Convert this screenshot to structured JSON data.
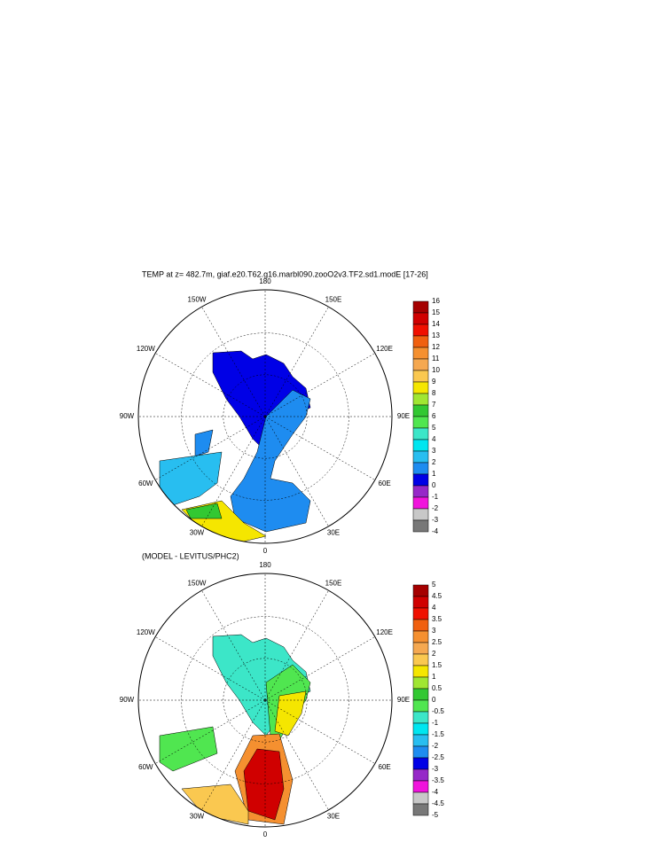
{
  "title": "TEMP at z= 482.7m, giaf.e20.T62.g16.marbl090.zooO2v3.TF2.sd1.modE [17-26]",
  "panels": [
    {
      "lon_labels": [
        "180",
        "150E",
        "120E",
        "90E",
        "60E",
        "30E",
        "0",
        "30W",
        "60W",
        "90W",
        "120W",
        "150W"
      ],
      "colorbar": {
        "labels": [
          "16",
          "15",
          "14",
          "13",
          "12",
          "11",
          "10",
          "9",
          "8",
          "7",
          "6",
          "5",
          "4",
          "3",
          "2",
          "1",
          "0",
          "-1",
          "-2",
          "-3",
          "-4"
        ],
        "colors": [
          "#a50000",
          "#d00000",
          "#f01000",
          "#f06010",
          "#f59030",
          "#f5a850",
          "#fac850",
          "#f5e600",
          "#a0e632",
          "#32c832",
          "#50e650",
          "#3ce6c8",
          "#00e6f0",
          "#28bef0",
          "#1e8cf0",
          "#0000e6",
          "#9628c8",
          "#f014dc",
          "#c8c8c8",
          "#787878"
        ]
      }
    },
    {
      "subtitle": "(MODEL - LEVITUS/PHC2)",
      "lon_labels": [
        "180",
        "150E",
        "120E",
        "90E",
        "60E",
        "30E",
        "0",
        "30W",
        "60W",
        "90W",
        "120W",
        "150W"
      ],
      "colorbar": {
        "labels": [
          "5",
          "4.5",
          "4",
          "3.5",
          "3",
          "2.5",
          "2",
          "1.5",
          "1",
          "0.5",
          "0",
          "-0.5",
          "-1",
          "-1.5",
          "-2",
          "-2.5",
          "-3",
          "-3.5",
          "-4",
          "-4.5",
          "-5"
        ],
        "colors": [
          "#a50000",
          "#d00000",
          "#f01000",
          "#f06010",
          "#f59030",
          "#f5a850",
          "#fac850",
          "#f5e600",
          "#a0e632",
          "#32c832",
          "#50e650",
          "#3ce6c8",
          "#00e6f0",
          "#28bef0",
          "#1e8cf0",
          "#0000e6",
          "#9628c8",
          "#f014dc",
          "#c8c8c8",
          "#787878"
        ]
      }
    }
  ]
}
